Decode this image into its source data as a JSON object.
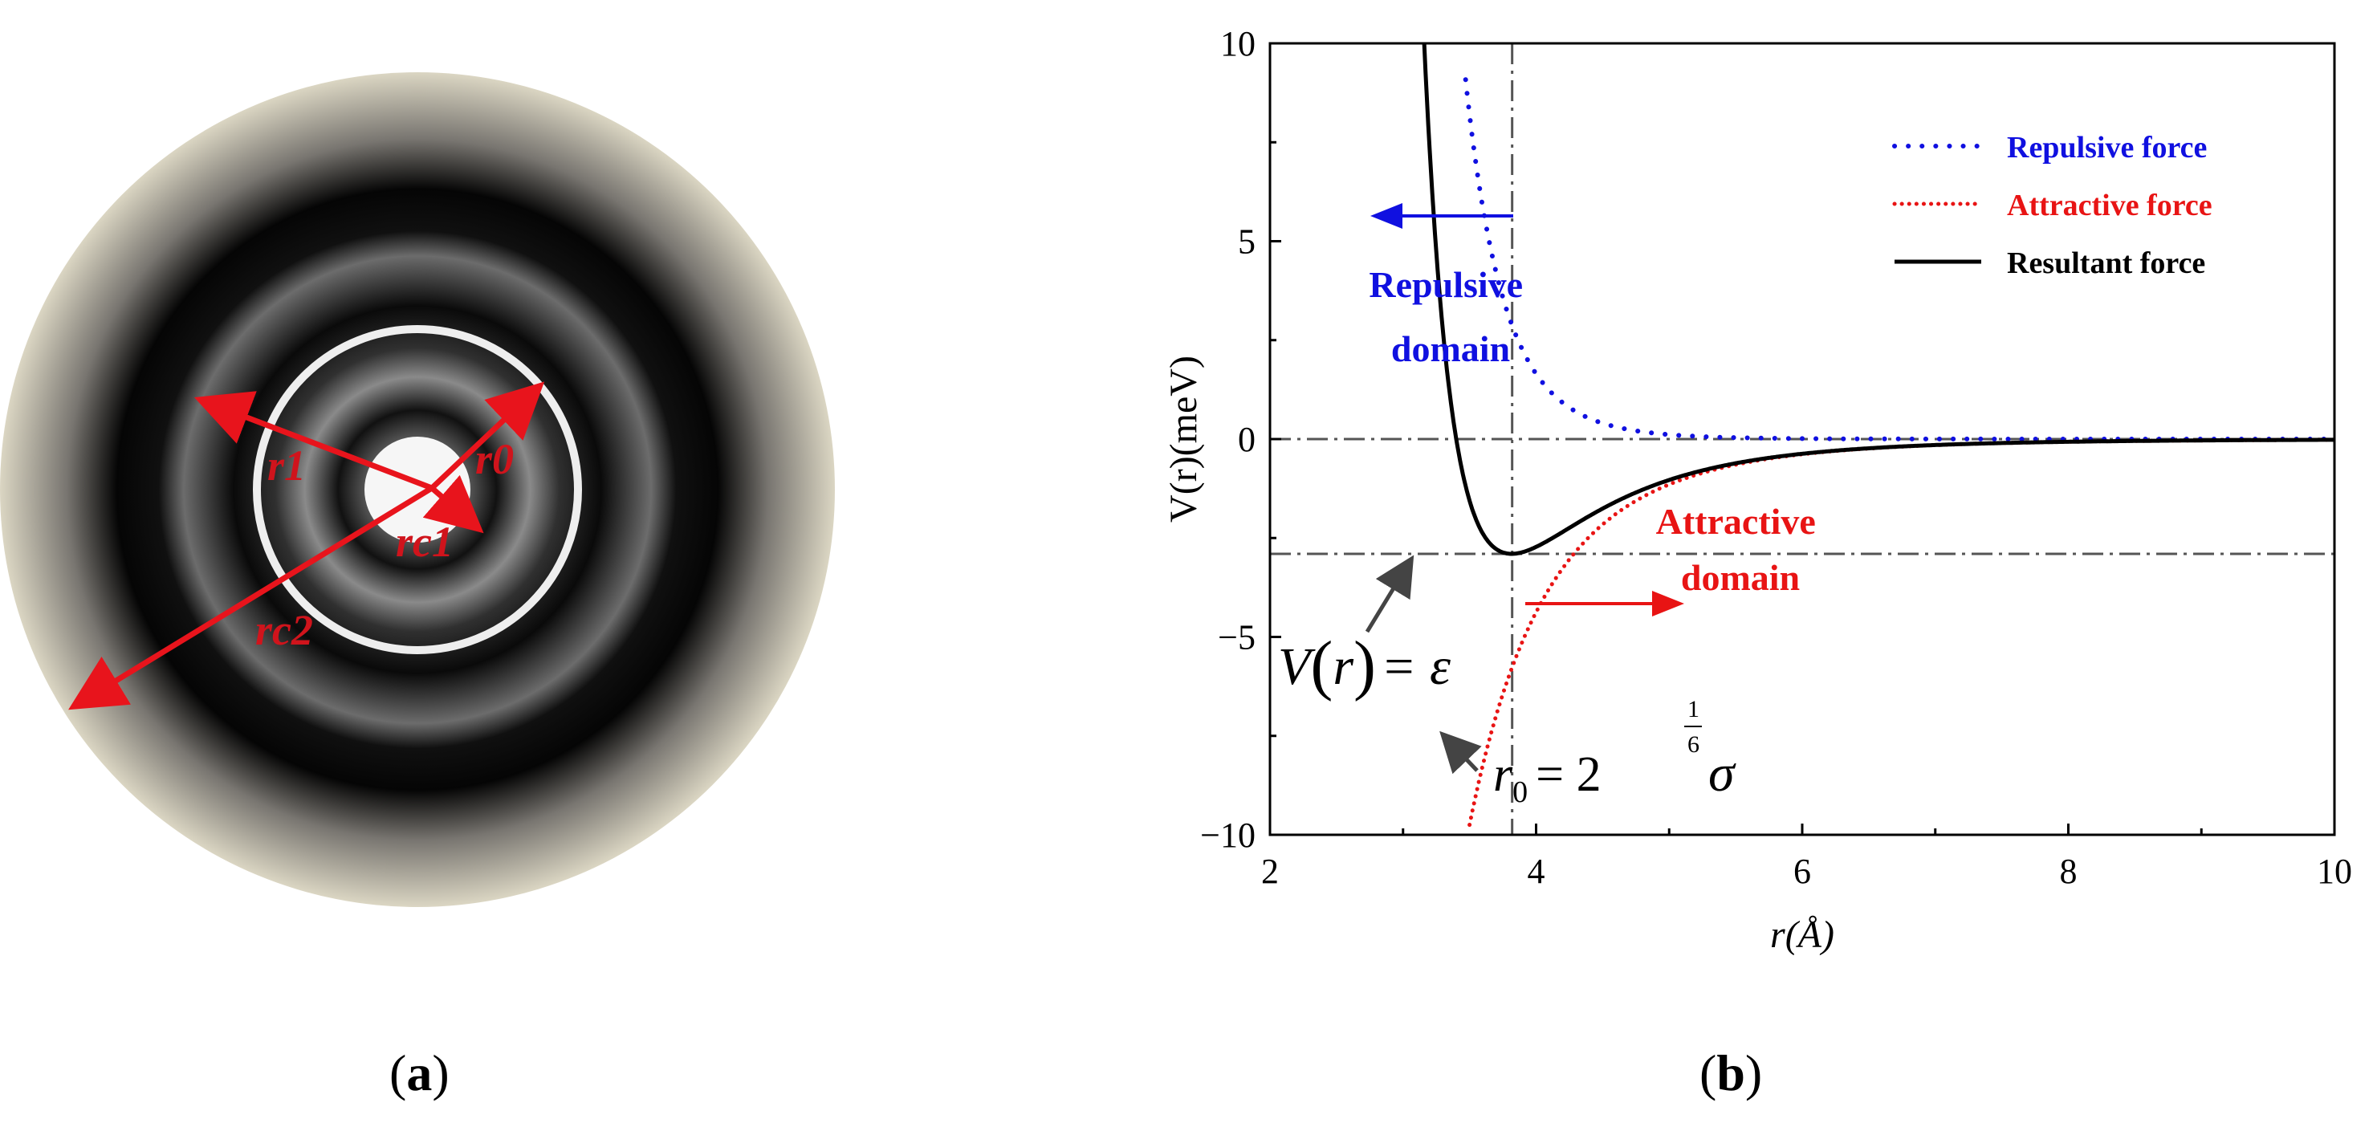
{
  "panel_a": {
    "label": "a",
    "radius_labels": {
      "r1": "r1",
      "r0": "r0",
      "rc1": "rc1",
      "rc2": "rc2"
    },
    "colors": {
      "arrow": "#e8141c",
      "ring": "#eeeeee",
      "outer": "#d8d4c3"
    }
  },
  "panel_b": {
    "label": "b",
    "annotations": {
      "repulsive_domain": [
        "Repulsive",
        "domain"
      ],
      "attractive_domain": [
        "Attractive",
        "domain"
      ],
      "epsilon_eq_left": "V",
      "epsilon_eq_arg": "r",
      "epsilon_eq_right": "= ε",
      "r0_eq_base": "r",
      "r0_eq_sub": "0",
      "r0_eq_mid": "= 2",
      "r0_eq_exp_num": "1",
      "r0_eq_exp_den": "6",
      "r0_eq_sigma": "σ"
    }
  },
  "chart_data": {
    "type": "line",
    "xlabel": "r(Å)",
    "ylabel": "V(r)(meV)",
    "xlim": [
      2,
      10
    ],
    "ylim": [
      -10,
      10
    ],
    "xticks": [
      2,
      4,
      6,
      8,
      10
    ],
    "yticks": [
      -10,
      -5,
      0,
      5,
      10
    ],
    "ytick_labels": [
      "−10",
      "−5",
      "0",
      "5",
      "10"
    ],
    "reference_lines": {
      "r0": 3.82,
      "epsilon": -2.9,
      "zero": 0
    },
    "model": "lennard-jones",
    "epsilon_meV": 2.9,
    "sigma_angstrom": 3.4,
    "legend_position": "top-right",
    "series": [
      {
        "name": "Repulsive force",
        "style": "dotted-sparse",
        "color": "#1010e0",
        "x": [
          3.5,
          3.6,
          3.7,
          3.8,
          3.9,
          4.0,
          4.2,
          4.4,
          4.6,
          4.8,
          5.0,
          5.5,
          6.0,
          7.0,
          8.0,
          10.0
        ],
        "y": [
          9.9,
          7.3,
          5.4,
          4.0,
          3.0,
          2.3,
          1.3,
          0.77,
          0.47,
          0.29,
          0.19,
          0.06,
          0.02,
          0.0,
          0.0,
          0.0
        ]
      },
      {
        "name": "Attractive force",
        "style": "dotted-dense",
        "color": "#e81414",
        "x": [
          3.5,
          3.6,
          3.7,
          3.8,
          3.9,
          4.0,
          4.2,
          4.4,
          4.6,
          4.8,
          5.0,
          5.5,
          6.0,
          7.0,
          8.0,
          10.0
        ],
        "y": [
          -9.9,
          -8.6,
          -7.4,
          -6.4,
          -5.6,
          -4.9,
          -3.6,
          -2.8,
          -2.1,
          -1.6,
          -1.3,
          -0.7,
          -0.39,
          -0.15,
          -0.06,
          -0.02
        ]
      },
      {
        "name": "Resultant force",
        "style": "solid",
        "color": "#000000",
        "x": [
          3.15,
          3.2,
          3.3,
          3.4,
          3.5,
          3.6,
          3.7,
          3.82,
          4.0,
          4.2,
          4.4,
          4.6,
          4.8,
          5.0,
          5.5,
          6.0,
          7.0,
          8.0,
          10.0
        ],
        "y": [
          10.0,
          7.6,
          2.9,
          0.0,
          -1.6,
          -2.4,
          -2.8,
          -2.9,
          -2.7,
          -2.3,
          -1.9,
          -1.5,
          -1.3,
          -1.0,
          -0.6,
          -0.36,
          -0.14,
          -0.06,
          -0.02
        ]
      }
    ]
  }
}
